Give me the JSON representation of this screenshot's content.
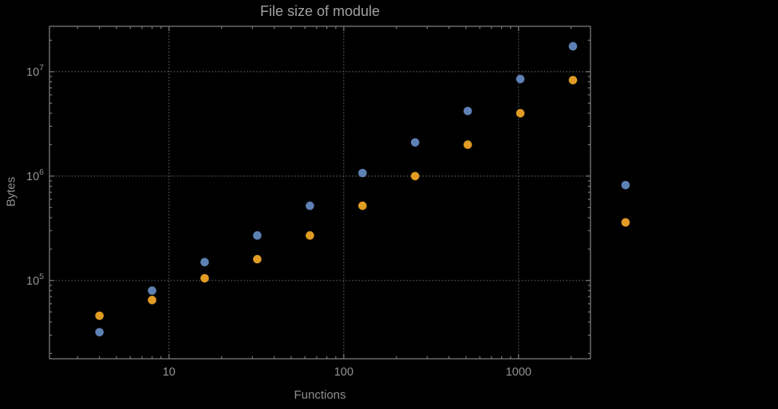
{
  "chart_data": {
    "type": "scatter",
    "title": "File size of module",
    "xlabel": "Functions",
    "ylabel": "Bytes",
    "x_scale": "log",
    "y_scale": "log",
    "grid": true,
    "legend": "none",
    "x_ticks": [
      10,
      100,
      1000
    ],
    "x_tick_labels": [
      "10",
      "100",
      "1000"
    ],
    "y_ticks": [
      100000,
      1000000,
      10000000
    ],
    "y_tick_base": "10",
    "y_tick_exponents": [
      "5",
      "6",
      "7"
    ],
    "xlim": [
      2.07,
      2580
    ],
    "ylim": [
      17800,
      27200000
    ],
    "colors": {
      "background": "#000000",
      "frame": "#7a7a7a",
      "grid": "#5a5a5a",
      "tick_labels": "#949494",
      "axis_labels": "#8f8f8f",
      "title": "#a0a0a0",
      "series_blue": "#5e81b5",
      "series_orange": "#e19c24"
    },
    "series": [
      {
        "name": "series-blue",
        "color": "#5e81b5",
        "points": [
          [
            4,
            32000
          ],
          [
            8,
            80000
          ],
          [
            16,
            150000
          ],
          [
            32,
            270000
          ],
          [
            64,
            520000
          ],
          [
            128,
            1070000
          ],
          [
            256,
            2100000
          ],
          [
            512,
            4200000
          ],
          [
            1024,
            8500000
          ],
          [
            2048,
            17500000
          ],
          [
            4096,
            820000
          ]
        ]
      },
      {
        "name": "series-orange",
        "color": "#e19c24",
        "points": [
          [
            4,
            46000
          ],
          [
            8,
            65000
          ],
          [
            16,
            105000
          ],
          [
            32,
            160000
          ],
          [
            64,
            270000
          ],
          [
            128,
            520000
          ],
          [
            256,
            1000000
          ],
          [
            512,
            2000000
          ],
          [
            1024,
            4000000
          ],
          [
            2048,
            8300000
          ],
          [
            4096,
            360000
          ]
        ]
      }
    ]
  }
}
